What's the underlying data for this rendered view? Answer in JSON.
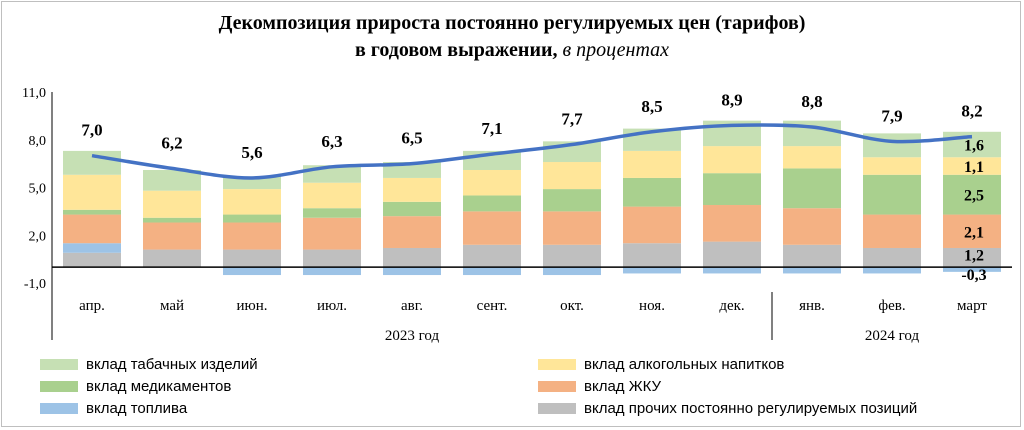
{
  "title": {
    "line1": "Декомпозиция прироста постоянно регулируемых цен (тарифов)",
    "line2": "в годовом выражении,",
    "unit": "в процентах"
  },
  "colors": {
    "tobacco": "#c6e0b4",
    "alcohol": "#ffe699",
    "medicine": "#a9d08e",
    "housing": "#f4b183",
    "fuel": "#9dc3e6",
    "other": "#bfbfbf",
    "line": "#4472c4"
  },
  "chart_data": {
    "type": "bar",
    "stacked": true,
    "categories": [
      "апр.",
      "май",
      "июн.",
      "июл.",
      "авг.",
      "сент.",
      "окт.",
      "ноя.",
      "дек.",
      "янв.",
      "фев.",
      "март"
    ],
    "year_groups": [
      {
        "label": "2023 год",
        "from": 0,
        "to": 8
      },
      {
        "label": "2024 год",
        "from": 9,
        "to": 11
      }
    ],
    "ylim": [
      -1.0,
      11.0
    ],
    "yticks": [
      "11,0",
      "8,0",
      "5,0",
      "2,0",
      "-1,0"
    ],
    "ytick_values": [
      11.0,
      8.0,
      5.0,
      2.0,
      -1.0
    ],
    "series": [
      {
        "key": "other",
        "name": "вклад прочих постоянно регулируемых  позиций",
        "values": [
          0.9,
          1.1,
          1.1,
          1.1,
          1.2,
          1.4,
          1.4,
          1.5,
          1.6,
          1.4,
          1.2,
          1.2
        ]
      },
      {
        "key": "fuel",
        "name": "вклад топлива",
        "values": [
          0.6,
          0.0,
          -0.5,
          -0.5,
          -0.5,
          -0.5,
          -0.5,
          -0.4,
          -0.4,
          -0.4,
          -0.4,
          -0.3
        ]
      },
      {
        "key": "housing",
        "name": "вклад ЖКУ",
        "values": [
          1.8,
          1.7,
          1.7,
          2.0,
          2.0,
          2.1,
          2.1,
          2.3,
          2.3,
          2.3,
          2.1,
          2.1
        ]
      },
      {
        "key": "medicine",
        "name": "вклад медикаментов",
        "values": [
          0.3,
          0.3,
          0.5,
          0.6,
          0.9,
          1.0,
          1.4,
          1.8,
          2.0,
          2.5,
          2.5,
          2.5
        ]
      },
      {
        "key": "alcohol",
        "name": "вклад алкогольных напитков",
        "values": [
          2.2,
          1.7,
          1.6,
          1.6,
          1.5,
          1.6,
          1.7,
          1.7,
          1.7,
          1.4,
          1.1,
          1.1
        ]
      },
      {
        "key": "tobacco",
        "name": "вклад табачных изделий",
        "values": [
          1.5,
          1.3,
          0.8,
          1.1,
          1.0,
          1.2,
          1.3,
          1.4,
          1.6,
          1.6,
          1.5,
          1.6
        ]
      }
    ],
    "total": {
      "name": "total",
      "values": [
        7.0,
        6.2,
        5.6,
        6.3,
        6.5,
        7.1,
        7.7,
        8.5,
        8.9,
        8.8,
        7.9,
        8.2
      ],
      "labels": [
        "7,0",
        "6,2",
        "5,6",
        "6,3",
        "6,5",
        "7,1",
        "7,7",
        "8,5",
        "8,9",
        "8,8",
        "7,9",
        "8,2"
      ]
    },
    "segment_labels_last": [
      {
        "key": "other",
        "label": "1,2"
      },
      {
        "key": "fuel",
        "label": "-0,3"
      },
      {
        "key": "housing",
        "label": "2,1"
      },
      {
        "key": "medicine",
        "label": "2,5"
      },
      {
        "key": "alcohol",
        "label": "1,1"
      },
      {
        "key": "tobacco",
        "label": "1,6"
      }
    ]
  },
  "legend": {
    "left": [
      {
        "key": "tobacco",
        "label": "вклад табачных изделий"
      },
      {
        "key": "medicine",
        "label": "вклад медикаментов"
      },
      {
        "key": "fuel",
        "label": "вклад топлива"
      }
    ],
    "right": [
      {
        "key": "alcohol",
        "label": "вклад алкогольных напитков"
      },
      {
        "key": "housing",
        "label": "вклад ЖКУ"
      },
      {
        "key": "other",
        "label": "вклад прочих постоянно регулируемых  позиций"
      }
    ]
  }
}
